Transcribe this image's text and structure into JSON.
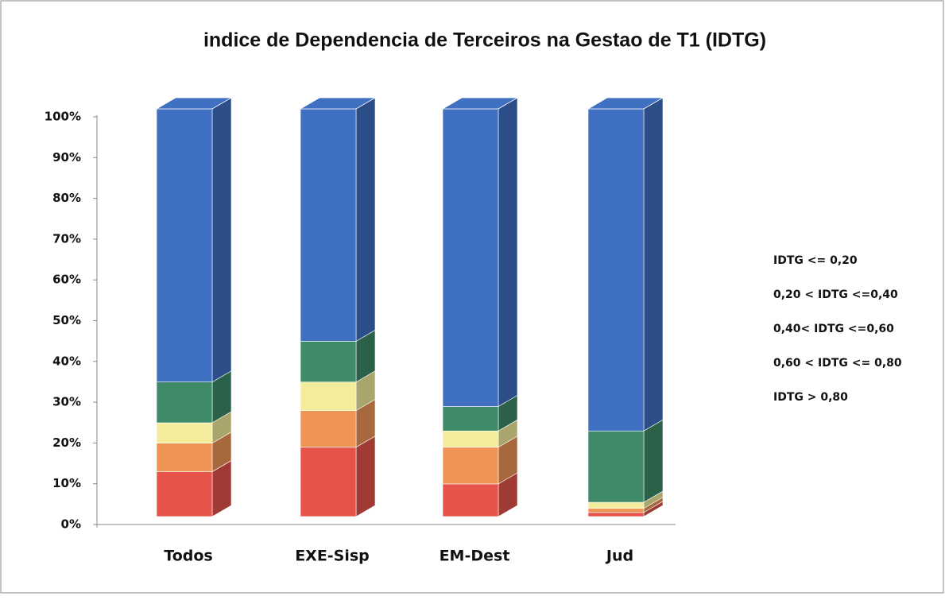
{
  "chart_data": {
    "type": "stacked-bar-3d",
    "title": "indice de Dependencia de Terceiros na Gestao de T1 (IDTG)",
    "categories": [
      "Todos",
      "EXE-Sisp",
      "EM-Dest",
      "Jud"
    ],
    "series": [
      {
        "name": "IDTG > 0,80",
        "color": "#e5534b",
        "values": [
          11,
          17,
          8,
          1
        ]
      },
      {
        "name": "0,60 < IDTG <= 0,80",
        "color": "#ef9457",
        "values": [
          7,
          9,
          9,
          1
        ]
      },
      {
        "name": "0,40< IDTG <=0,60",
        "color": "#f2ec9b",
        "values": [
          5,
          7,
          4,
          1.5
        ]
      },
      {
        "name": "0,20 < IDTG <=0,40",
        "color": "#3f8a68",
        "values": [
          10,
          10,
          6,
          17.5
        ]
      },
      {
        "name": "IDTG <= 0,20",
        "color": "#3f70c2",
        "values": [
          67,
          57,
          73,
          79
        ]
      }
    ],
    "ylim": [
      0,
      100
    ],
    "yticks": [
      {
        "value": 0,
        "label": "0%"
      },
      {
        "value": 10,
        "label": "10%"
      },
      {
        "value": 20,
        "label": "20%"
      },
      {
        "value": 30,
        "label": "30%"
      },
      {
        "value": 40,
        "label": "40%"
      },
      {
        "value": 50,
        "label": "50%"
      },
      {
        "value": 60,
        "label": "60%"
      },
      {
        "value": 70,
        "label": "70%"
      },
      {
        "value": 80,
        "label": "80%"
      },
      {
        "value": 90,
        "label": "90%"
      },
      {
        "value": 100,
        "label": "100%"
      }
    ]
  }
}
